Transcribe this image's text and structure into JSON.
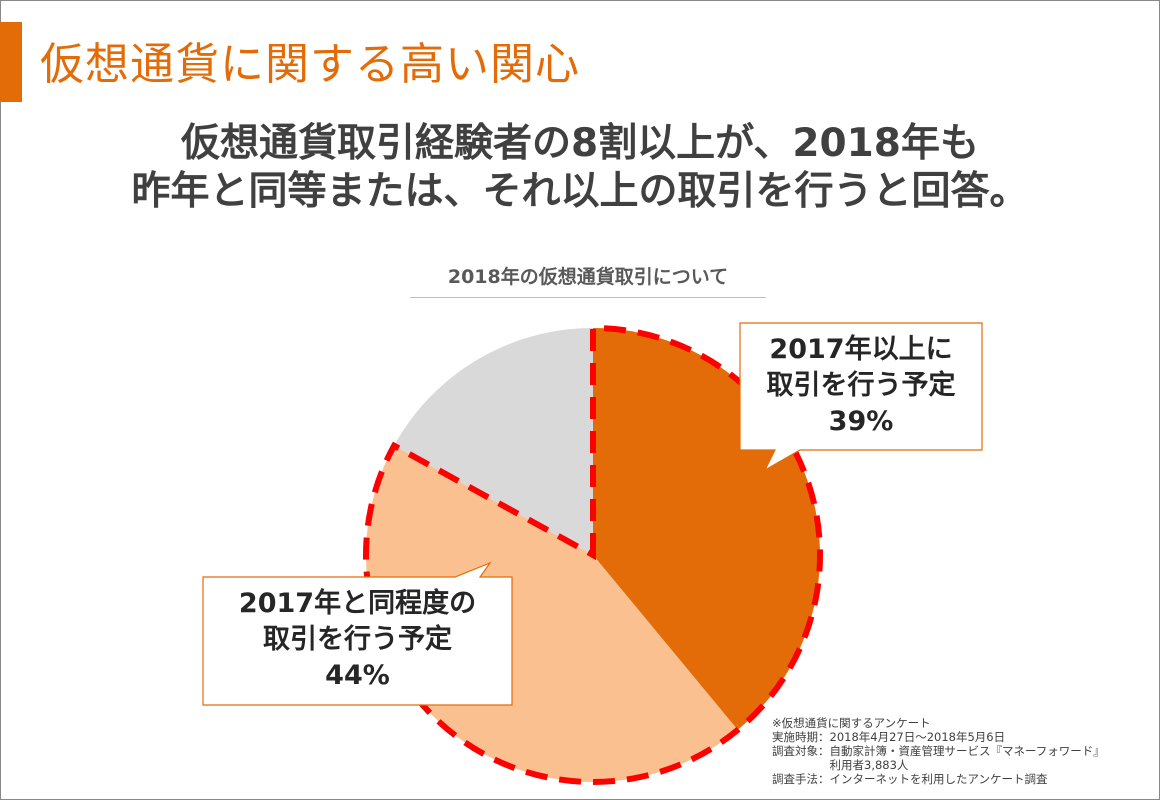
{
  "slide": {
    "title": "仮想通貨に関する高い関心",
    "headline_line1": "仮想通貨取引経験者の8割以上が、2018年も",
    "headline_line2": "昨年と同等または、それ以上の取引を行うと回答。",
    "accent_color": "#e36c09"
  },
  "chart_data": {
    "type": "pie",
    "title": "2018年の仮想通貨取引について",
    "slices": [
      {
        "label": "2017年以上に取引を行う予定",
        "value": 39,
        "color": "#e36c09"
      },
      {
        "label": "2017年と同程度の取引を行う予定",
        "value": 44,
        "color": "#fac090"
      },
      {
        "label": "",
        "value": 17,
        "color": "#d9d9d9"
      }
    ],
    "highlight_outline_color": "#ff0000"
  },
  "callouts": [
    {
      "line1": "2017年以上に",
      "line2": "取引を行う予定",
      "pct": "39%"
    },
    {
      "line1": "2017年と同程度の",
      "line2": "取引を行う予定",
      "pct": "44%"
    }
  ],
  "footnote": [
    "※仮想通貨に関するアンケート",
    "実施時期：2018年4月27日～2018年5月6日",
    "調査対象：自動家計簿・資産管理サービス『マネーフォワード』",
    "　　　　　利用者3,883人",
    "調査手法：インターネットを利用したアンケート調査"
  ]
}
